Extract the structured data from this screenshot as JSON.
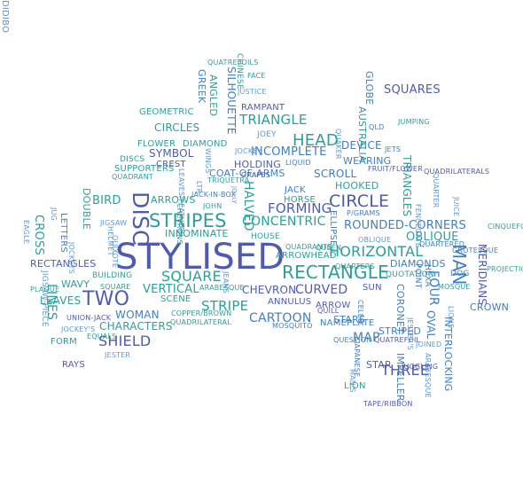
{
  "palette": {
    "dark_blue": "#4f5bb0",
    "blue": "#3f7fc2",
    "teal": "#2d9e9a",
    "green": "#2fa886",
    "light_blue": "#5c9ad6"
  },
  "words": [
    {
      "text": "STYLISED",
      "color": "dark_blue",
      "orient": "horizontal"
    },
    {
      "text": "RECTANGLE",
      "color": "teal",
      "orient": "horizontal"
    },
    {
      "text": "STRIPES",
      "color": "teal",
      "orient": "horizontal"
    },
    {
      "text": "DISC",
      "color": "dark_blue",
      "orient": "vertical"
    },
    {
      "text": "TWO",
      "color": "dark_blue",
      "orient": "horizontal"
    },
    {
      "text": "MAN",
      "color": "blue",
      "orient": "vertical"
    },
    {
      "text": "HEAD",
      "color": "teal",
      "orient": "horizontal"
    },
    {
      "text": "CIRCLE",
      "color": "dark_blue",
      "orient": "horizontal"
    },
    {
      "text": "SQUARE",
      "color": "teal",
      "orient": "horizontal"
    },
    {
      "text": "HORIZONTAL",
      "color": "teal",
      "orient": "horizontal"
    },
    {
      "text": "TRIANGLE",
      "color": "teal",
      "orient": "horizontal"
    },
    {
      "text": "FORMING",
      "color": "dark_blue",
      "orient": "horizontal"
    },
    {
      "text": "SHIELD",
      "color": "dark_blue",
      "orient": "horizontal"
    },
    {
      "text": "THREE",
      "color": "dark_blue",
      "orient": "horizontal"
    },
    {
      "text": "CONCENTRIC",
      "color": "teal",
      "orient": "horizontal"
    },
    {
      "text": "CURVED",
      "color": "dark_blue",
      "orient": "horizontal"
    },
    {
      "text": "STRIPE",
      "color": "teal",
      "orient": "horizontal"
    },
    {
      "text": "ROUNDED-CORNERS",
      "color": "blue",
      "orient": "horizontal"
    },
    {
      "text": "OBLIQUE",
      "color": "teal",
      "orient": "horizontal"
    },
    {
      "text": "CARTOON",
      "color": "blue",
      "orient": "horizontal"
    },
    {
      "text": "INCOMPLETE",
      "color": "blue",
      "orient": "horizontal"
    },
    {
      "text": "BIRD",
      "color": "teal",
      "orient": "horizontal"
    },
    {
      "text": "VERTICAL",
      "color": "teal",
      "orient": "horizontal"
    },
    {
      "text": "WOMAN",
      "color": "blue",
      "orient": "horizontal"
    },
    {
      "text": "CHARACTERS",
      "color": "teal",
      "orient": "horizontal"
    },
    {
      "text": "HALVED",
      "color": "teal",
      "orient": "vertical"
    },
    {
      "text": "OVAL",
      "color": "blue",
      "orient": "vertical"
    },
    {
      "text": "CROSS",
      "color": "teal",
      "orient": "vertical"
    },
    {
      "text": "CIRCLES",
      "color": "teal",
      "orient": "horizontal"
    },
    {
      "text": "SYMBOL",
      "color": "dark_blue",
      "orient": "horizontal"
    },
    {
      "text": "DEVICE",
      "color": "blue",
      "orient": "horizontal"
    },
    {
      "text": "WEARING",
      "color": "blue",
      "orient": "horizontal"
    },
    {
      "text": "HOOKED",
      "color": "teal",
      "orient": "horizontal"
    },
    {
      "text": "SCROLL",
      "color": "blue",
      "orient": "horizontal"
    },
    {
      "text": "HOLDING",
      "color": "dark_blue",
      "orient": "horizontal"
    },
    {
      "text": "INNOMINATE",
      "color": "teal",
      "orient": "horizontal"
    },
    {
      "text": "ARROWS",
      "color": "teal",
      "orient": "horizontal"
    },
    {
      "text": "MAP",
      "color": "blue",
      "orient": "horizontal"
    },
    {
      "text": "FOUR",
      "color": "blue",
      "orient": "vertical"
    },
    {
      "text": "MERIDIANS",
      "color": "dark_blue",
      "orient": "vertical"
    },
    {
      "text": "LINES",
      "color": "teal",
      "orient": "vertical"
    },
    {
      "text": "LEAVES",
      "color": "teal",
      "orient": "horizontal"
    },
    {
      "text": "RECTANGLES",
      "color": "dark_blue",
      "orient": "horizontal"
    },
    {
      "text": "DIAMONDS",
      "color": "blue",
      "orient": "horizontal"
    },
    {
      "text": "CHEVRON",
      "color": "dark_blue",
      "orient": "horizontal"
    },
    {
      "text": "DOUBLE",
      "color": "teal",
      "orient": "vertical"
    },
    {
      "text": "WAVY",
      "color": "teal",
      "orient": "horizontal"
    },
    {
      "text": "SILHOUETTE",
      "color": "blue",
      "orient": "vertical"
    },
    {
      "text": "RAMPANT",
      "color": "dark_blue",
      "orient": "horizontal"
    },
    {
      "text": "GEOMETRIC",
      "color": "teal",
      "orient": "horizontal"
    },
    {
      "text": "FLOWER",
      "color": "teal",
      "orient": "horizontal"
    },
    {
      "text": "DIAMOND",
      "color": "teal",
      "orient": "horizontal"
    },
    {
      "text": "COAT-OF-ARMS",
      "color": "blue",
      "orient": "horizontal"
    },
    {
      "text": "CREST",
      "color": "dark_blue",
      "orient": "horizontal"
    },
    {
      "text": "SUPPORTERS",
      "color": "teal",
      "orient": "horizontal"
    },
    {
      "text": "DISCS",
      "color": "teal",
      "orient": "horizontal"
    },
    {
      "text": "JACK",
      "color": "blue",
      "orient": "horizontal"
    },
    {
      "text": "HORSE",
      "color": "teal",
      "orient": "horizontal"
    },
    {
      "text": "HOUSE",
      "color": "teal",
      "orient": "horizontal"
    },
    {
      "text": "ARROWHEAD",
      "color": "teal",
      "orient": "horizontal"
    },
    {
      "text": "SQUARES",
      "color": "dark_blue",
      "orient": "horizontal"
    },
    {
      "text": "GLOBE",
      "color": "blue",
      "orient": "vertical"
    },
    {
      "text": "AUSTRALIA",
      "color": "teal",
      "orient": "vertical"
    },
    {
      "text": "GREEK",
      "color": "blue",
      "orient": "vertical"
    },
    {
      "text": "ANGLED",
      "color": "teal",
      "orient": "vertical"
    },
    {
      "text": "TRIANGLES",
      "color": "teal",
      "orient": "vertical"
    },
    {
      "text": "INTERLOCKING",
      "color": "blue",
      "orient": "vertical"
    },
    {
      "text": "CORONET",
      "color": "blue",
      "orient": "vertical"
    },
    {
      "text": "IMPELLER",
      "color": "blue",
      "orient": "vertical"
    },
    {
      "text": "STAR",
      "color": "dark_blue",
      "orient": "horizontal"
    },
    {
      "text": "SUN",
      "color": "dark_blue",
      "orient": "horizontal"
    },
    {
      "text": "STARS",
      "color": "blue",
      "orient": "horizontal"
    },
    {
      "text": "STRIPED",
      "color": "blue",
      "orient": "horizontal"
    },
    {
      "text": "ARROW",
      "color": "dark_blue",
      "orient": "horizontal"
    },
    {
      "text": "ANNULUS",
      "color": "dark_blue",
      "orient": "horizontal"
    },
    {
      "text": "SCENE",
      "color": "teal",
      "orient": "horizontal"
    },
    {
      "text": "FORM",
      "color": "teal",
      "orient": "horizontal"
    },
    {
      "text": "RAYS",
      "color": "dark_blue",
      "orient": "horizontal"
    },
    {
      "text": "CROWN",
      "color": "blue",
      "orient": "horizontal"
    },
    {
      "text": "LION",
      "color": "teal",
      "orient": "horizontal"
    },
    {
      "text": "NAMEPLATE",
      "color": "blue",
      "orient": "horizontal"
    },
    {
      "text": "ELLIPSE",
      "color": "blue",
      "orient": "vertical"
    },
    {
      "text": "LETTERS",
      "color": "blue",
      "orient": "vertical"
    },
    {
      "text": "CHINESE",
      "color": "teal",
      "orient": "vertical"
    },
    {
      "text": "FACE",
      "color": "teal",
      "orient": "horizontal"
    },
    {
      "text": "JUSTICE",
      "color": "light_blue",
      "orient": "horizontal"
    },
    {
      "text": "JOEY",
      "color": "light_blue",
      "orient": "horizontal"
    },
    {
      "text": "QUATREFOILS",
      "color": "teal",
      "orient": "horizontal"
    },
    {
      "text": "QUAKER",
      "color": "light_blue",
      "orient": "vertical"
    },
    {
      "text": "QLD",
      "color": "blue",
      "orient": "horizontal"
    },
    {
      "text": "JUMPING",
      "color": "teal",
      "orient": "horizontal"
    },
    {
      "text": "WINGS",
      "color": "light_blue",
      "orient": "vertical"
    },
    {
      "text": "JOCKEY",
      "color": "light_blue",
      "orient": "horizontal"
    },
    {
      "text": "LIQUID",
      "color": "blue",
      "orient": "horizontal"
    },
    {
      "text": "FRUIT/FLOWER",
      "color": "dark_blue",
      "orient": "horizontal"
    },
    {
      "text": "JETS",
      "color": "blue",
      "orient": "horizontal"
    },
    {
      "text": "LEAVES/FEATHERS",
      "color": "light_blue",
      "orient": "vertical"
    },
    {
      "text": "QUADRANT",
      "color": "teal",
      "orient": "horizontal"
    },
    {
      "text": "TRIQUETRA",
      "color": "teal",
      "orient": "horizontal"
    },
    {
      "text": "LTR",
      "color": "light_blue",
      "orient": "vertical"
    },
    {
      "text": "JACK-IN-BOX",
      "color": "blue",
      "orient": "horizontal"
    },
    {
      "text": "GRAPES",
      "color": "dark_blue",
      "orient": "horizontal"
    },
    {
      "text": "QUADRILATERALS",
      "color": "dark_blue",
      "orient": "horizontal"
    },
    {
      "text": "QUARTER",
      "color": "light_blue",
      "orient": "vertical"
    },
    {
      "text": "FENCEGATE",
      "color": "light_blue",
      "orient": "vertical"
    },
    {
      "text": "JUICE",
      "color": "light_blue",
      "orient": "vertical"
    },
    {
      "text": "JOLLY",
      "color": "light_blue",
      "orient": "vertical"
    },
    {
      "text": "CHEVRONS",
      "color": "teal",
      "orient": "vertical"
    },
    {
      "text": "JOHN",
      "color": "teal",
      "orient": "horizontal"
    },
    {
      "text": "P/GRAMS",
      "color": "blue",
      "orient": "horizontal"
    },
    {
      "text": "CINQUEFOIL",
      "color": "teal",
      "orient": "horizontal"
    },
    {
      "text": "JUG",
      "color": "light_blue",
      "orient": "vertical"
    },
    {
      "text": "EAGLE",
      "color": "light_blue",
      "orient": "vertical"
    },
    {
      "text": "JOCKEYS",
      "color": "light_blue",
      "orient": "vertical"
    },
    {
      "text": "JIGSAW",
      "color": "light_blue",
      "orient": "horizontal"
    },
    {
      "text": "HELMET",
      "color": "light_blue",
      "orient": "vertical"
    },
    {
      "text": "QUIXOTE",
      "color": "light_blue",
      "orient": "vertical"
    },
    {
      "text": "QUADRANTS",
      "color": "teal",
      "orient": "horizontal"
    },
    {
      "text": "QUEEN",
      "color": "teal",
      "orient": "horizontal"
    },
    {
      "text": "OBLIQUE",
      "color": "light_blue",
      "orient": "horizontal"
    },
    {
      "text": "QUARTERED",
      "color": "blue",
      "orient": "horizontal"
    },
    {
      "text": "PROJECTION",
      "color": "teal",
      "orient": "horizontal"
    },
    {
      "text": "JIGSAW-PIECE",
      "color": "light_blue",
      "orient": "vertical"
    },
    {
      "text": "BUILDING",
      "color": "teal",
      "orient": "horizontal"
    },
    {
      "text": "QUARTERS",
      "color": "teal",
      "orient": "horizontal"
    },
    {
      "text": "GROTESQUE",
      "color": "blue",
      "orient": "horizontal"
    },
    {
      "text": "JEANS",
      "color": "light_blue",
      "orient": "vertical"
    },
    {
      "text": "QUOTATION",
      "color": "teal",
      "orient": "horizontal"
    },
    {
      "text": "DOG",
      "color": "blue",
      "orient": "horizontal"
    },
    {
      "text": "PLAQUE",
      "color": "teal",
      "orient": "horizontal"
    },
    {
      "text": "SQUARE",
      "color": "teal",
      "orient": "horizontal"
    },
    {
      "text": "ARABESQUE",
      "color": "teal",
      "orient": "horizontal"
    },
    {
      "text": "MOSQUE",
      "color": "teal",
      "orient": "horizontal"
    },
    {
      "text": "HEXA",
      "color": "blue",
      "orient": "vertical"
    },
    {
      "text": "POINT",
      "color": "blue",
      "orient": "vertical"
    },
    {
      "text": "CELEB",
      "color": "blue",
      "orient": "vertical"
    },
    {
      "text": "QUILL",
      "color": "dark_blue",
      "orient": "horizontal"
    },
    {
      "text": "COPPER/BROWN",
      "color": "teal",
      "orient": "horizontal"
    },
    {
      "text": "QUADRILATERAL",
      "color": "teal",
      "orient": "horizontal"
    },
    {
      "text": "MOSQUITO",
      "color": "blue",
      "orient": "horizontal"
    },
    {
      "text": "UNION-JACK",
      "color": "dark_blue",
      "orient": "horizontal"
    },
    {
      "text": "JOCKEY'S",
      "color": "light_blue",
      "orient": "horizontal"
    },
    {
      "text": "EQUALS",
      "color": "teal",
      "orient": "horizontal"
    },
    {
      "text": "JESTER",
      "color": "light_blue",
      "orient": "horizontal"
    },
    {
      "text": "QUATREFOIL",
      "color": "dark_blue",
      "orient": "horizontal"
    },
    {
      "text": "QUESTION",
      "color": "blue",
      "orient": "horizontal"
    },
    {
      "text": "JAPANESE",
      "color": "blue",
      "orient": "vertical"
    },
    {
      "text": "MAN'S",
      "color": "light_blue",
      "orient": "vertical"
    },
    {
      "text": "JOINED",
      "color": "light_blue",
      "orient": "horizontal"
    },
    {
      "text": "JESTER'S",
      "color": "light_blue",
      "orient": "vertical"
    },
    {
      "text": "ARABESQUE",
      "color": "light_blue",
      "orient": "vertical"
    },
    {
      "text": "TAPE/RIBBON",
      "color": "dark_blue",
      "orient": "horizontal"
    },
    {
      "text": "JUGGLING",
      "color": "dark_blue",
      "orient": "horizontal"
    },
    {
      "text": "LIONS",
      "color": "light_blue",
      "orient": "vertical"
    },
    {
      "text": "DIDIBO",
      "color": "light_blue",
      "orient": "vertical"
    }
  ]
}
